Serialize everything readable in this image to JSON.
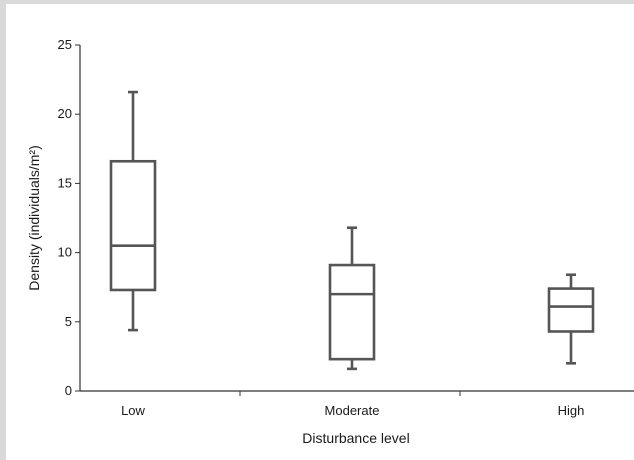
{
  "chart_data": {
    "type": "box",
    "xlabel": "Disturbance level",
    "ylabel": "Density (individuals/m²)",
    "ylim": [
      0,
      25
    ],
    "yticks": [
      "0",
      "5",
      "10",
      "15",
      "20",
      "25"
    ],
    "categories": [
      "Low",
      "Moderate",
      "High"
    ],
    "boxes": [
      {
        "category": "Low",
        "whisker_low": 4.4,
        "q1": 7.3,
        "median": 10.5,
        "q3": 16.6,
        "whisker_high": 21.6
      },
      {
        "category": "Moderate",
        "whisker_low": 1.6,
        "q1": 2.3,
        "median": 7.0,
        "q3": 9.1,
        "whisker_high": 11.8
      },
      {
        "category": "High",
        "whisker_low": 2.0,
        "q1": 4.3,
        "median": 6.1,
        "q3": 7.4,
        "whisker_high": 8.4
      }
    ],
    "grid": false,
    "colors": {
      "box": "#555555",
      "axis": "#333333",
      "frame": "#d9d9d9"
    }
  }
}
